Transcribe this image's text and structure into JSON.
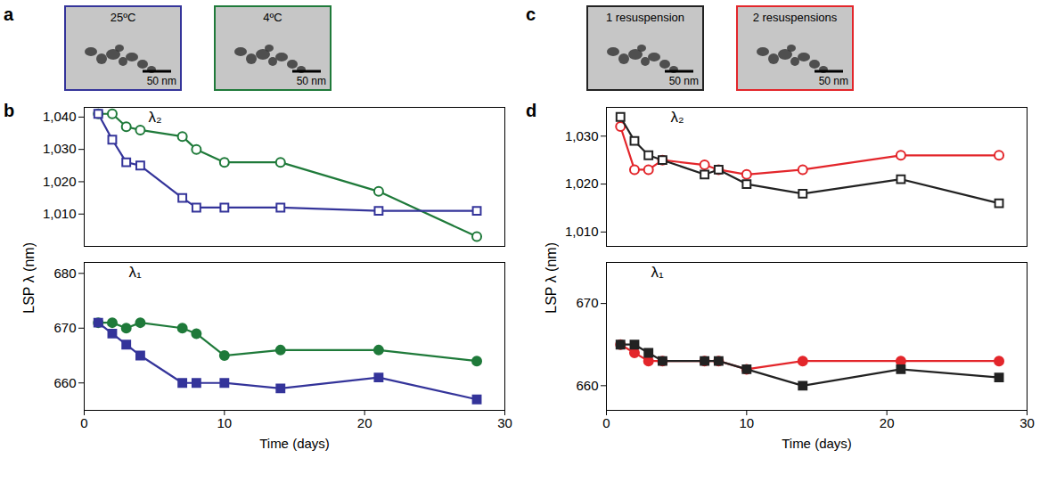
{
  "images": [
    {
      "letter": "a",
      "frames": [
        {
          "label": "25ºC",
          "scale_bar": "50 nm",
          "color": "#34349a"
        },
        {
          "label": "4ºC",
          "scale_bar": "50 nm",
          "color": "#1f7a3a"
        }
      ]
    },
    {
      "letter": "c",
      "frames": [
        {
          "label": "1 resuspension",
          "scale_bar": "50 nm",
          "color": "#222222"
        },
        {
          "label": "2 resuspensions",
          "scale_bar": "50 nm",
          "color": "#e3262b"
        }
      ]
    }
  ],
  "chart_data": [
    {
      "type": "line",
      "letter": "b",
      "xlabel": "Time (days)",
      "ylabel": "LSP λ (nm)",
      "x": [
        1,
        2,
        3,
        4,
        7,
        8,
        10,
        14,
        21,
        28
      ],
      "xlim": [
        0,
        30
      ],
      "xticks": [
        0,
        10,
        20,
        30
      ],
      "segments": [
        {
          "annotation": "λ₂",
          "ylim": [
            1000,
            1043
          ],
          "yticks": [
            1010,
            1020,
            1030,
            1040
          ],
          "series": [
            {
              "color": "#1f7a3a",
              "marker": "open_circle",
              "values": [
                1041,
                1041,
                1037,
                1036,
                1034,
                1030,
                1026,
                1026,
                1017,
                1003
              ]
            },
            {
              "color": "#34349a",
              "marker": "open_square",
              "values": [
                1041,
                1033,
                1026,
                1025,
                1015,
                1012,
                1012,
                1012,
                1011,
                1011
              ]
            }
          ]
        },
        {
          "annotation": "λ₁",
          "ylim": [
            655,
            682
          ],
          "yticks": [
            660,
            670,
            680
          ],
          "series": [
            {
              "color": "#1f7a3a",
              "marker": "circle",
              "values": [
                671,
                671,
                670,
                671,
                670,
                669,
                665,
                666,
                666,
                664
              ]
            },
            {
              "color": "#34349a",
              "marker": "square",
              "values": [
                671,
                669,
                667,
                665,
                660,
                660,
                660,
                659,
                661,
                657
              ]
            }
          ]
        }
      ]
    },
    {
      "type": "line",
      "letter": "d",
      "xlabel": "Time (days)",
      "ylabel": "LSP λ (nm)",
      "x": [
        1,
        2,
        3,
        4,
        7,
        8,
        10,
        14,
        21,
        28
      ],
      "xlim": [
        0,
        30
      ],
      "xticks": [
        0,
        10,
        20,
        30
      ],
      "segments": [
        {
          "annotation": "λ₂",
          "ylim": [
            1007,
            1036
          ],
          "yticks": [
            1010,
            1020,
            1030
          ],
          "series": [
            {
              "color": "#e3262b",
              "marker": "open_circle",
              "values": [
                1032,
                1023,
                1023,
                1025,
                1024,
                1023,
                1022,
                1023,
                1026,
                1026
              ]
            },
            {
              "color": "#222222",
              "marker": "open_square",
              "values": [
                1034,
                1029,
                1026,
                1025,
                1022,
                1023,
                1020,
                1018,
                1021,
                1016
              ]
            }
          ]
        },
        {
          "annotation": "λ₁",
          "ylim": [
            657,
            675
          ],
          "yticks": [
            660,
            670
          ],
          "series": [
            {
              "color": "#e3262b",
              "marker": "circle",
              "values": [
                665,
                664,
                663,
                663,
                663,
                663,
                662,
                663,
                663,
                663
              ]
            },
            {
              "color": "#222222",
              "marker": "square",
              "values": [
                665,
                665,
                664,
                663,
                663,
                663,
                662,
                660,
                662,
                661
              ]
            }
          ]
        }
      ]
    }
  ]
}
